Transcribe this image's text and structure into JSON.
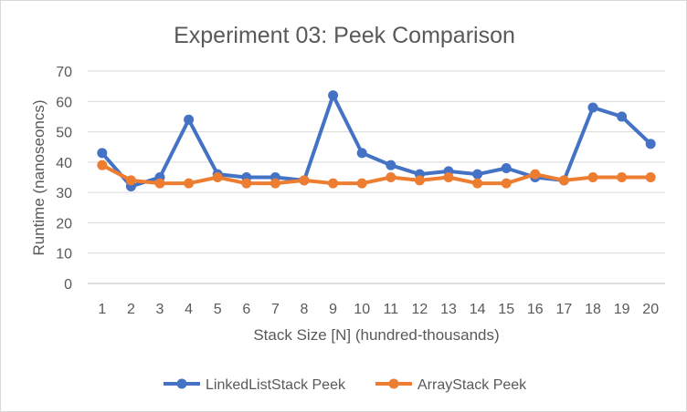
{
  "chart_data": {
    "type": "line",
    "title": "Experiment 03: Peek Comparison",
    "xlabel": "Stack Size [N] (hundred-thousands)",
    "ylabel": "Runtime (nanoseoncs)",
    "ylim": [
      0,
      70
    ],
    "yticks": [
      0,
      10,
      20,
      30,
      40,
      50,
      60,
      70
    ],
    "grid": true,
    "legend_position": "bottom",
    "categories": [
      "1",
      "2",
      "3",
      "4",
      "5",
      "6",
      "7",
      "8",
      "9",
      "10",
      "11",
      "12",
      "13",
      "14",
      "15",
      "16",
      "17",
      "18",
      "19",
      "20"
    ],
    "series": [
      {
        "name": "LinkedListStack Peek",
        "color": "#4472C4",
        "values": [
          43,
          32,
          35,
          54,
          36,
          35,
          35,
          34,
          62,
          43,
          39,
          36,
          37,
          36,
          38,
          35,
          34,
          58,
          55,
          46
        ]
      },
      {
        "name": "ArrayStack Peek",
        "color": "#ED7D31",
        "values": [
          39,
          34,
          33,
          33,
          35,
          33,
          33,
          34,
          33,
          33,
          35,
          34,
          35,
          33,
          33,
          36,
          34,
          35,
          35,
          35
        ]
      }
    ]
  }
}
